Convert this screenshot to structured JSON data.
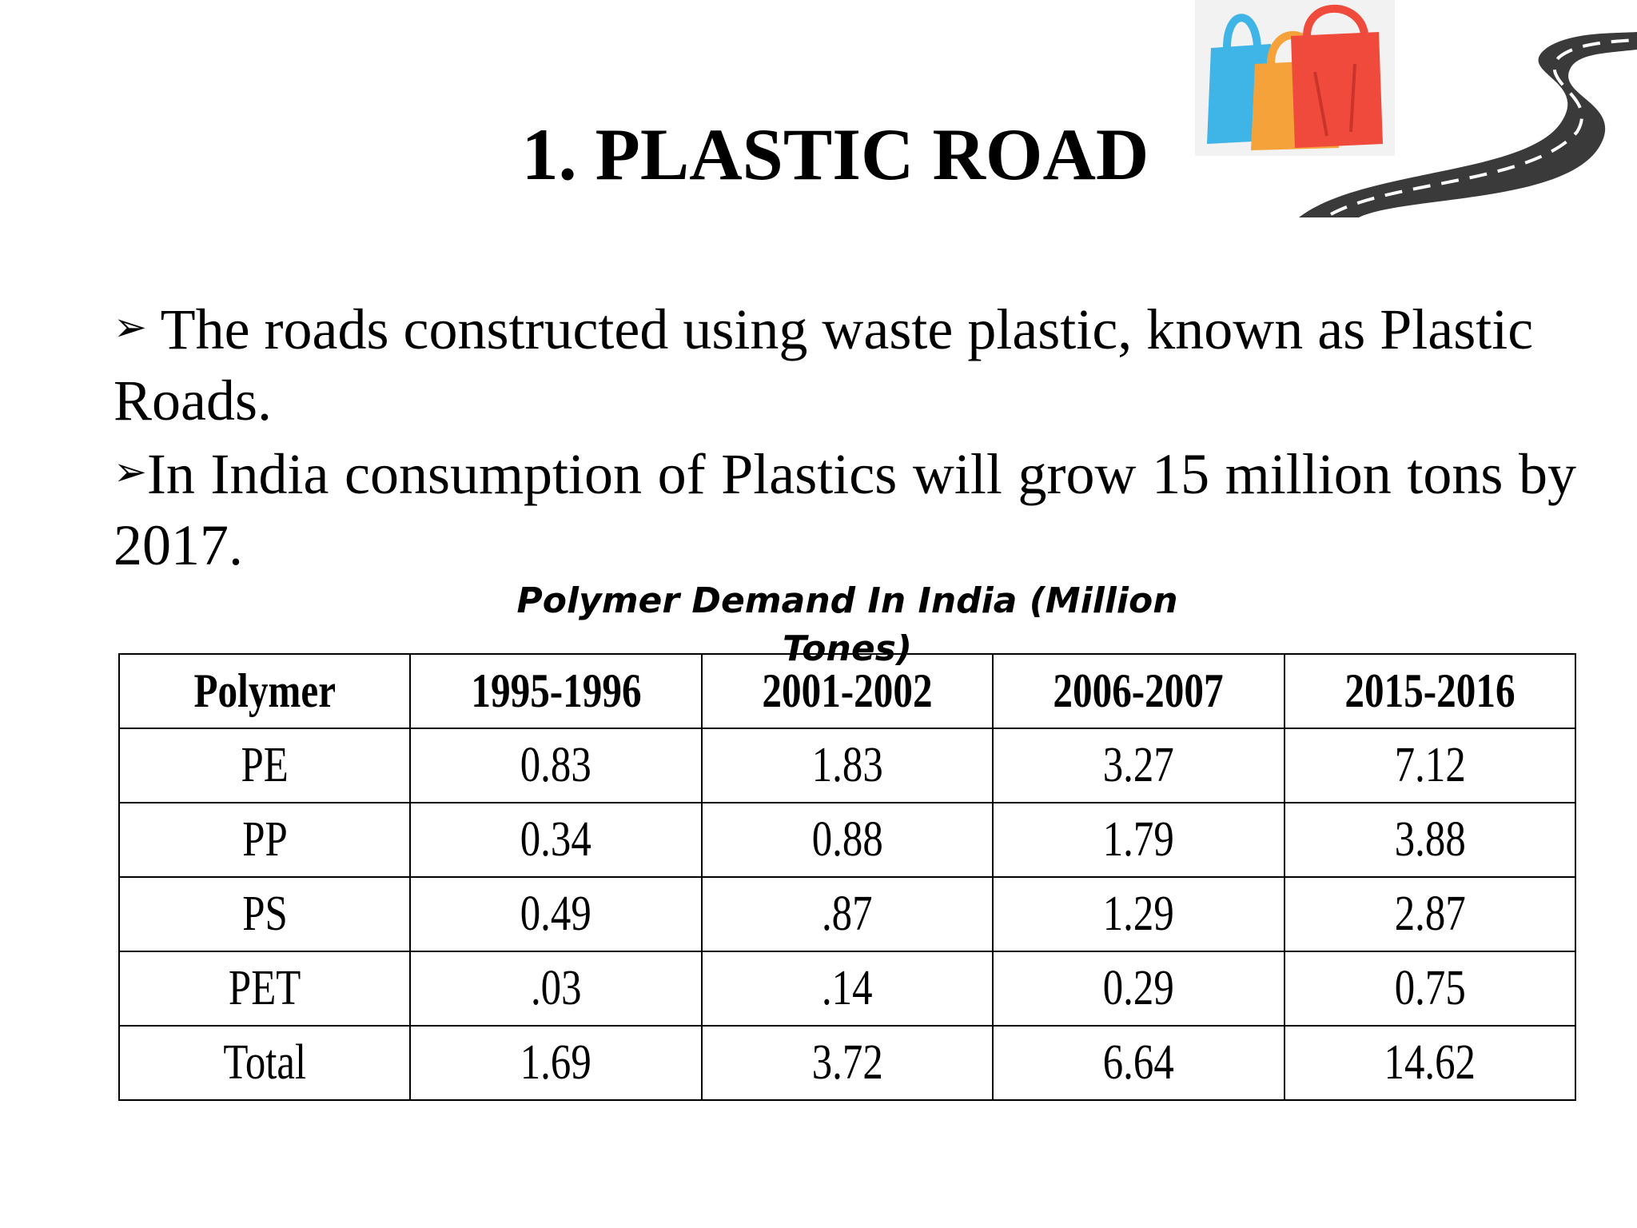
{
  "slide": {
    "title": "1. PLASTIC ROAD",
    "bullets": [
      {
        "marker": "➢",
        "text": " The roads constructed using waste plastic,  known  as Plastic Roads."
      },
      {
        "marker": "➢",
        "text": "In India consumption of Plastics will grow 15 million tons by 2017."
      }
    ],
    "illustration_icons": [
      "plastic-bags-icon",
      "winding-road-icon"
    ]
  },
  "table": {
    "caption": "Polymer Demand In India (Million Tones)",
    "headers": [
      "Polymer",
      "1995-1996",
      "2001-2002",
      "2006-2007",
      "2015-2016"
    ],
    "rows": [
      [
        "PE",
        "0.83",
        "1.83",
        "3.27",
        "7.12"
      ],
      [
        "PP",
        "0.34",
        "0.88",
        "1.79",
        "3.88"
      ],
      [
        "PS",
        "0.49",
        ".87",
        "1.29",
        "2.87"
      ],
      [
        "PET",
        ".03",
        ".14",
        "0.29",
        "0.75"
      ],
      [
        "Total",
        "1.69",
        "3.72",
        "6.64",
        "14.62"
      ]
    ]
  }
}
